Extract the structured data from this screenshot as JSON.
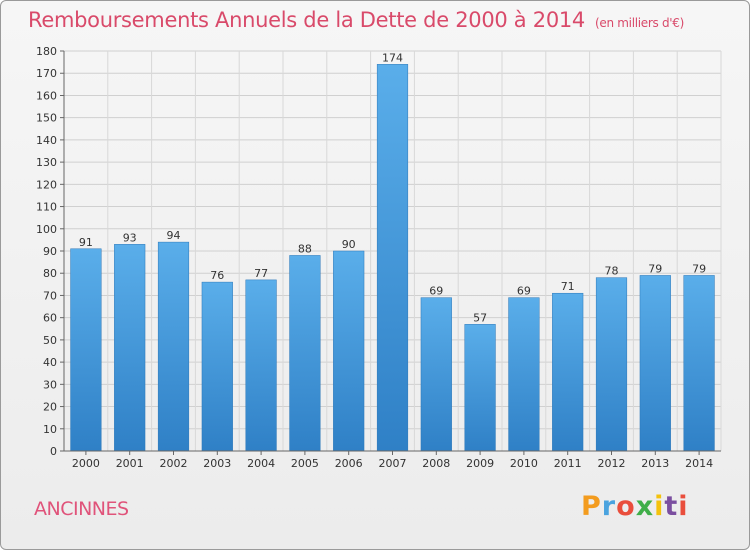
{
  "header": {
    "title": "Remboursements Annuels de la Dette de 2000 à 2014",
    "subtitle": "(en milliers d'€)"
  },
  "footer": {
    "commune": "ANCINNES",
    "logo_text": "Proxiti",
    "logo_colors": [
      "#f39c1f",
      "#4aa3df",
      "#e94e3c",
      "#3fae49",
      "#f4c20d",
      "#7b4fa0",
      "#e94e3c"
    ]
  },
  "chart_data": {
    "type": "bar",
    "title": "Remboursements Annuels de la Dette de 2000 à 2014",
    "subtitle": "(en milliers d'€)",
    "categories": [
      "2000",
      "2001",
      "2002",
      "2003",
      "2004",
      "2005",
      "2006",
      "2007",
      "2008",
      "2009",
      "2010",
      "2011",
      "2012",
      "2013",
      "2014"
    ],
    "values": [
      91,
      93,
      94,
      76,
      77,
      88,
      90,
      174,
      69,
      57,
      69,
      71,
      78,
      79,
      79
    ],
    "ylim": [
      0,
      180
    ],
    "yticks": [
      0,
      10,
      20,
      30,
      40,
      50,
      60,
      70,
      80,
      90,
      100,
      110,
      120,
      130,
      140,
      150,
      160,
      170,
      180
    ],
    "grid": true,
    "bar_color": "#4a9fe0",
    "bar_color_dark": "#2e7fc4",
    "data_labels": true
  }
}
